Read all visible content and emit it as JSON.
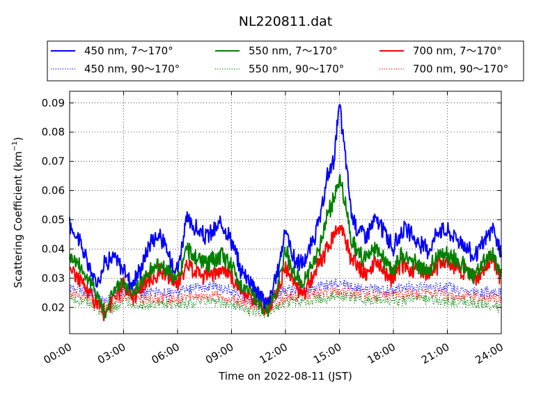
{
  "chart_data": {
    "type": "line",
    "title": "NL220811.dat",
    "xlabel": "Time on 2022-08-11 (JST)",
    "ylabel": "Scattering Coefficient (km",
    "ylabel_sup": "−1",
    "ylabel_end": ")",
    "xlim": [
      "00:00",
      "24:00"
    ],
    "ylim": [
      0.011,
      0.094
    ],
    "x_ticks": [
      "00:00",
      "03:00",
      "06:00",
      "09:00",
      "12:00",
      "15:00",
      "18:00",
      "21:00",
      "24:00"
    ],
    "y_ticks": [
      "0.02",
      "0.03",
      "0.04",
      "0.05",
      "0.06",
      "0.07",
      "0.08",
      "0.09"
    ],
    "grid": true,
    "legend_position": "top, above plot",
    "series": [
      {
        "name": "450 nm, 7～170°",
        "color": "#0000ff",
        "style": "solid",
        "x": [
          "00:00",
          "00:30",
          "01:00",
          "01:30",
          "02:00",
          "02:30",
          "03:00",
          "03:30",
          "04:00",
          "04:30",
          "05:00",
          "05:30",
          "06:00",
          "06:30",
          "07:00",
          "07:30",
          "08:00",
          "08:30",
          "09:00",
          "09:30",
          "10:00",
          "10:30",
          "11:00",
          "11:30",
          "12:00",
          "12:30",
          "13:00",
          "13:30",
          "14:00",
          "14:20",
          "14:40",
          "15:00",
          "15:20",
          "15:40",
          "16:00",
          "16:30",
          "17:00",
          "17:30",
          "18:00",
          "18:30",
          "19:00",
          "19:30",
          "20:00",
          "20:30",
          "21:00",
          "21:30",
          "22:00",
          "22:30",
          "23:00",
          "23:30",
          "24:00"
        ],
        "values": [
          0.048,
          0.044,
          0.035,
          0.028,
          0.036,
          0.037,
          0.033,
          0.028,
          0.034,
          0.043,
          0.045,
          0.038,
          0.033,
          0.05,
          0.047,
          0.044,
          0.046,
          0.049,
          0.043,
          0.033,
          0.03,
          0.025,
          0.021,
          0.03,
          0.047,
          0.036,
          0.035,
          0.042,
          0.052,
          0.065,
          0.07,
          0.089,
          0.072,
          0.052,
          0.047,
          0.045,
          0.05,
          0.046,
          0.04,
          0.047,
          0.045,
          0.041,
          0.04,
          0.047,
          0.046,
          0.044,
          0.041,
          0.037,
          0.042,
          0.047,
          0.038
        ]
      },
      {
        "name": "550 nm, 7～170°",
        "color": "#008000",
        "style": "solid",
        "x": [
          "00:00",
          "00:30",
          "01:00",
          "01:30",
          "02:00",
          "02:30",
          "03:00",
          "03:30",
          "04:00",
          "04:30",
          "05:00",
          "05:30",
          "06:00",
          "06:30",
          "07:00",
          "07:30",
          "08:00",
          "08:30",
          "09:00",
          "09:30",
          "10:00",
          "10:30",
          "11:00",
          "11:30",
          "12:00",
          "12:30",
          "13:00",
          "13:30",
          "14:00",
          "14:20",
          "14:40",
          "15:00",
          "15:20",
          "15:40",
          "16:00",
          "16:30",
          "17:00",
          "17:30",
          "18:00",
          "18:30",
          "19:00",
          "19:30",
          "20:00",
          "20:30",
          "21:00",
          "21:30",
          "22:00",
          "22:30",
          "23:00",
          "23:30",
          "24:00"
        ],
        "values": [
          0.038,
          0.035,
          0.03,
          0.025,
          0.018,
          0.027,
          0.028,
          0.025,
          0.029,
          0.033,
          0.035,
          0.032,
          0.029,
          0.04,
          0.037,
          0.035,
          0.036,
          0.038,
          0.034,
          0.028,
          0.026,
          0.022,
          0.019,
          0.026,
          0.04,
          0.031,
          0.028,
          0.034,
          0.043,
          0.052,
          0.056,
          0.064,
          0.056,
          0.043,
          0.039,
          0.036,
          0.04,
          0.036,
          0.033,
          0.038,
          0.036,
          0.034,
          0.033,
          0.038,
          0.038,
          0.036,
          0.034,
          0.031,
          0.035,
          0.039,
          0.031
        ]
      },
      {
        "name": "700 nm, 7～170°",
        "color": "#ff0000",
        "style": "solid",
        "x": [
          "00:00",
          "00:30",
          "01:00",
          "01:30",
          "02:00",
          "02:30",
          "03:00",
          "03:30",
          "04:00",
          "04:30",
          "05:00",
          "05:30",
          "06:00",
          "06:30",
          "07:00",
          "07:30",
          "08:00",
          "08:30",
          "09:00",
          "09:30",
          "10:00",
          "10:30",
          "11:00",
          "11:30",
          "12:00",
          "12:30",
          "13:00",
          "13:30",
          "14:00",
          "14:20",
          "14:40",
          "15:00",
          "15:20",
          "15:40",
          "16:00",
          "16:30",
          "17:00",
          "17:30",
          "18:00",
          "18:30",
          "19:00",
          "19:30",
          "20:00",
          "20:30",
          "21:00",
          "21:30",
          "22:00",
          "22:30",
          "23:00",
          "23:30",
          "24:00"
        ],
        "values": [
          0.034,
          0.03,
          0.026,
          0.022,
          0.017,
          0.024,
          0.027,
          0.024,
          0.027,
          0.03,
          0.032,
          0.03,
          0.028,
          0.034,
          0.033,
          0.031,
          0.032,
          0.033,
          0.03,
          0.026,
          0.024,
          0.021,
          0.02,
          0.025,
          0.034,
          0.028,
          0.025,
          0.03,
          0.036,
          0.04,
          0.045,
          0.048,
          0.043,
          0.036,
          0.034,
          0.031,
          0.035,
          0.032,
          0.03,
          0.035,
          0.033,
          0.032,
          0.031,
          0.035,
          0.036,
          0.034,
          0.032,
          0.03,
          0.033,
          0.037,
          0.03
        ]
      },
      {
        "name": "450 nm, 90～170°",
        "color": "#0000ff",
        "style": "dotted",
        "x": [
          "00:00",
          "01:00",
          "02:00",
          "03:00",
          "04:00",
          "05:00",
          "06:00",
          "07:00",
          "08:00",
          "09:00",
          "10:00",
          "11:00",
          "12:00",
          "13:00",
          "14:00",
          "15:00",
          "16:00",
          "17:00",
          "18:00",
          "19:00",
          "20:00",
          "21:00",
          "22:00",
          "23:00",
          "24:00"
        ],
        "values": [
          0.027,
          0.026,
          0.022,
          0.026,
          0.025,
          0.025,
          0.025,
          0.027,
          0.027,
          0.026,
          0.023,
          0.021,
          0.026,
          0.026,
          0.027,
          0.028,
          0.027,
          0.026,
          0.026,
          0.027,
          0.027,
          0.027,
          0.026,
          0.025,
          0.025
        ]
      },
      {
        "name": "550 nm, 90～170°",
        "color": "#008000",
        "style": "dotted",
        "x": [
          "00:00",
          "01:00",
          "02:00",
          "03:00",
          "04:00",
          "05:00",
          "06:00",
          "07:00",
          "08:00",
          "09:00",
          "10:00",
          "11:00",
          "12:00",
          "13:00",
          "14:00",
          "15:00",
          "16:00",
          "17:00",
          "18:00",
          "19:00",
          "20:00",
          "21:00",
          "22:00",
          "23:00",
          "24:00"
        ],
        "values": [
          0.023,
          0.022,
          0.018,
          0.022,
          0.021,
          0.021,
          0.021,
          0.022,
          0.022,
          0.021,
          0.019,
          0.018,
          0.022,
          0.022,
          0.023,
          0.024,
          0.023,
          0.022,
          0.022,
          0.023,
          0.023,
          0.022,
          0.022,
          0.021,
          0.02
        ]
      },
      {
        "name": "700 nm, 90～170°",
        "color": "#ff0000",
        "style": "dotted",
        "x": [
          "00:00",
          "01:00",
          "02:00",
          "03:00",
          "04:00",
          "05:00",
          "06:00",
          "07:00",
          "08:00",
          "09:00",
          "10:00",
          "11:00",
          "12:00",
          "13:00",
          "14:00",
          "15:00",
          "16:00",
          "17:00",
          "18:00",
          "19:00",
          "20:00",
          "21:00",
          "22:00",
          "23:00",
          "24:00"
        ],
        "values": [
          0.025,
          0.024,
          0.02,
          0.024,
          0.023,
          0.023,
          0.023,
          0.024,
          0.024,
          0.023,
          0.021,
          0.02,
          0.024,
          0.024,
          0.025,
          0.026,
          0.025,
          0.024,
          0.024,
          0.025,
          0.025,
          0.024,
          0.024,
          0.023,
          0.023
        ]
      }
    ],
    "legend_order": [
      0,
      3,
      1,
      4,
      2,
      5
    ]
  }
}
